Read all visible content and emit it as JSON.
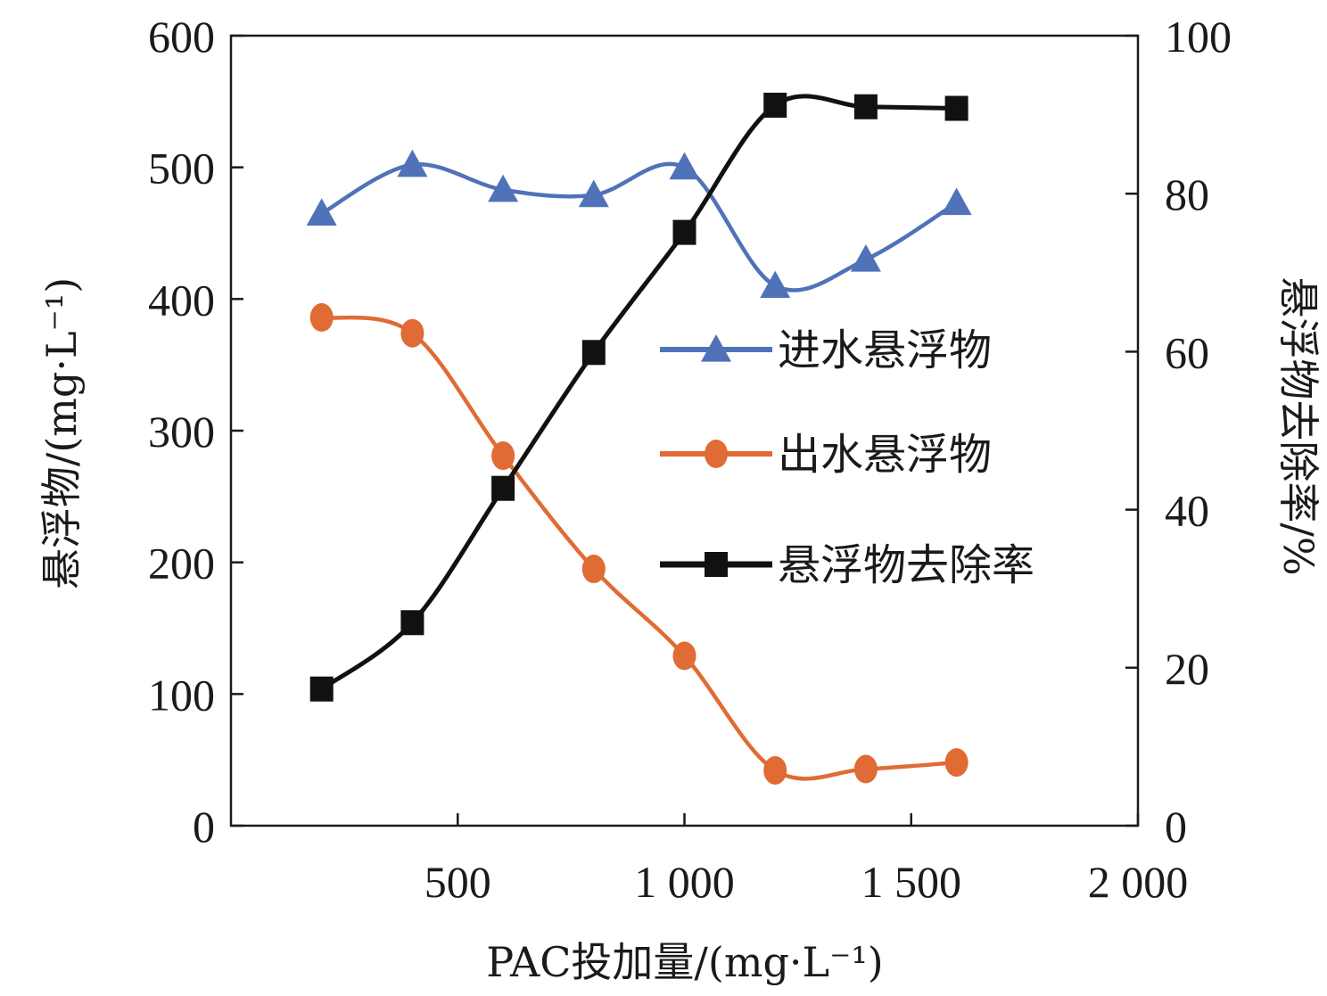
{
  "chart_data": {
    "type": "line",
    "xlabel": "PAC投加量/(mg·L⁻¹)",
    "ylabel_left": "悬浮物/(mg·L⁻¹)",
    "ylabel_right": "悬浮物去除率/%",
    "x_range": [
      0,
      2000
    ],
    "x_ticks": [
      500,
      1000,
      1500,
      2000
    ],
    "x_tick_labels": [
      "500",
      "1 000",
      "1 500",
      "2 000"
    ],
    "y_left_range": [
      0,
      600
    ],
    "y_left_ticks": [
      0,
      100,
      200,
      300,
      400,
      500,
      600
    ],
    "y_left_tick_labels": [
      "0",
      "100",
      "200",
      "300",
      "400",
      "500",
      "600"
    ],
    "y_right_range": [
      0,
      100
    ],
    "y_right_ticks": [
      0,
      20,
      40,
      60,
      80,
      100
    ],
    "y_right_tick_labels": [
      "0",
      "20",
      "40",
      "60",
      "80",
      "100"
    ],
    "grid": false,
    "legend_position": "right",
    "x": [
      200,
      400,
      600,
      800,
      1000,
      1200,
      1400,
      1600
    ],
    "series": [
      {
        "name": "进水悬浮物",
        "axis": "left",
        "marker": "triangle",
        "color": "#4f72b8",
        "values": [
          465,
          502,
          483,
          479,
          500,
          410,
          430,
          473
        ]
      },
      {
        "name": "出水悬浮物",
        "axis": "left",
        "marker": "circle",
        "color": "#e06b34",
        "values": [
          386,
          374,
          281,
          195,
          129,
          42,
          43,
          48
        ]
      },
      {
        "name": "悬浮物去除率",
        "axis": "right",
        "marker": "square",
        "color": "#111111",
        "values": [
          17.3,
          25.7,
          42.7,
          59.9,
          75.1,
          91.2,
          91.0,
          90.8
        ]
      }
    ]
  }
}
